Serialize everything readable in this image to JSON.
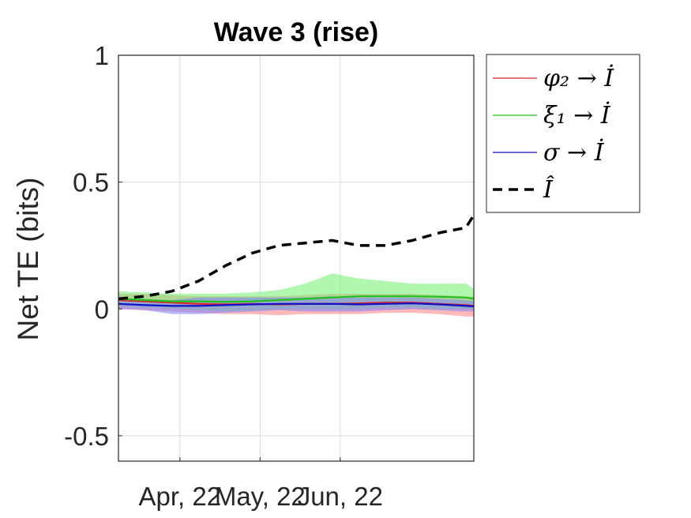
{
  "chart_data": {
    "type": "line",
    "title": "Wave 3 (rise)",
    "xlabel": "",
    "ylabel": "Net TE (bits)",
    "ylim": [
      -0.6,
      1.0
    ],
    "y_ticks": [
      -0.5,
      0,
      0.5,
      1
    ],
    "y_tick_labels": [
      "-0.5",
      "0",
      "0.5",
      "1"
    ],
    "xlim": [
      "2022-03-09",
      "2022-07-20"
    ],
    "x_ticks": [
      "2022-04-01",
      "2022-05-01",
      "2022-05-31"
    ],
    "x_tick_labels": [
      "Apr, 22",
      "May, 22",
      "Jun, 22"
    ],
    "grid": true,
    "legend_position": "outside-top-right",
    "x": [
      "2022-03-09",
      "2022-03-19",
      "2022-03-29",
      "2022-04-08",
      "2022-04-18",
      "2022-04-28",
      "2022-05-08",
      "2022-05-18",
      "2022-05-28",
      "2022-06-07",
      "2022-06-17",
      "2022-06-27",
      "2022-07-07",
      "2022-07-17",
      "2022-07-20"
    ],
    "series": [
      {
        "name": "φ₂ → İ",
        "color": "#d62828",
        "band_color": "#ff8080",
        "style": "solid",
        "values": [
          0.035,
          0.03,
          0.025,
          0.02,
          0.018,
          0.02,
          0.018,
          0.02,
          0.02,
          0.022,
          0.025,
          0.025,
          0.02,
          0.015,
          0.012
        ],
        "lower": [
          0.0,
          -0.005,
          -0.01,
          -0.015,
          -0.02,
          -0.02,
          -0.025,
          -0.02,
          -0.02,
          -0.02,
          -0.015,
          -0.015,
          -0.02,
          -0.03,
          -0.03
        ],
        "upper": [
          0.06,
          0.06,
          0.055,
          0.05,
          0.05,
          0.05,
          0.05,
          0.055,
          0.06,
          0.06,
          0.06,
          0.06,
          0.055,
          0.05,
          0.05
        ]
      },
      {
        "name": "ξ₁ → İ",
        "color": "#20c020",
        "band_color": "#70f070",
        "style": "solid",
        "values": [
          0.04,
          0.035,
          0.03,
          0.03,
          0.028,
          0.03,
          0.035,
          0.04,
          0.045,
          0.05,
          0.05,
          0.05,
          0.048,
          0.045,
          0.04
        ],
        "lower": [
          0.01,
          0.005,
          0.0,
          -0.005,
          -0.01,
          -0.005,
          0.0,
          0.0,
          0.0,
          0.0,
          0.005,
          0.005,
          0.0,
          0.0,
          0.0
        ],
        "upper": [
          0.07,
          0.065,
          0.06,
          0.06,
          0.06,
          0.065,
          0.075,
          0.1,
          0.14,
          0.12,
          0.11,
          0.1,
          0.1,
          0.1,
          0.08
        ]
      },
      {
        "name": "σ → İ",
        "color": "#1010c8",
        "band_color": "#8080ff",
        "style": "solid",
        "values": [
          0.02,
          0.015,
          0.012,
          0.012,
          0.015,
          0.018,
          0.02,
          0.02,
          0.02,
          0.018,
          0.02,
          0.022,
          0.018,
          0.012,
          0.01
        ],
        "lower": [
          0.0,
          -0.005,
          -0.02,
          -0.02,
          -0.015,
          -0.01,
          -0.005,
          -0.01,
          -0.01,
          -0.01,
          -0.005,
          0.0,
          -0.005,
          -0.01,
          -0.01
        ],
        "upper": [
          0.04,
          0.035,
          0.035,
          0.045,
          0.045,
          0.045,
          0.045,
          0.045,
          0.05,
          0.045,
          0.045,
          0.045,
          0.04,
          0.035,
          0.03
        ]
      },
      {
        "name": "Î",
        "color": "#000000",
        "style": "dashed",
        "values": [
          0.04,
          0.05,
          0.07,
          0.11,
          0.17,
          0.22,
          0.25,
          0.26,
          0.27,
          0.25,
          0.25,
          0.27,
          0.3,
          0.32,
          0.37
        ]
      }
    ]
  }
}
